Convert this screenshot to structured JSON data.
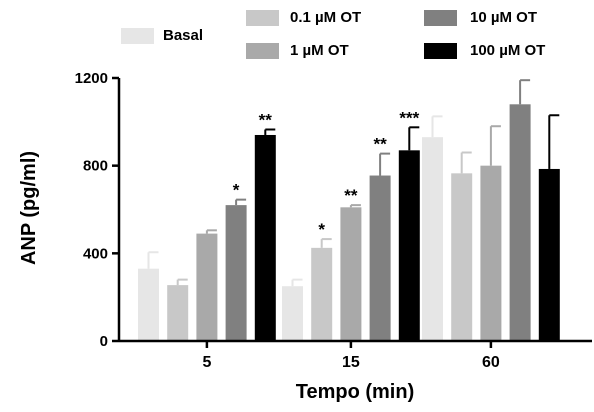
{
  "chart_data": {
    "type": "bar",
    "xlabel": "Tempo (min)",
    "ylabel": "ANP (pg/ml)",
    "ylim": [
      0,
      1200
    ],
    "yticks": [
      0,
      400,
      800,
      1200
    ],
    "yticks_labels": [
      "0",
      "400",
      "800",
      "1200"
    ],
    "grid": false,
    "legend_position": "top",
    "categories": [
      "5",
      "15",
      "60"
    ],
    "series": [
      {
        "name": "Basal",
        "color": "#e6e6e6",
        "values": [
          330,
          250,
          930
        ],
        "errors": [
          75,
          30,
          95
        ]
      },
      {
        "name": "0.1 µM OT",
        "color": "#c8c8c8",
        "values": [
          255,
          425,
          765
        ],
        "errors": [
          25,
          40,
          95
        ]
      },
      {
        "name": "1 µM OT",
        "color": "#a9a9a9",
        "values": [
          490,
          610,
          800
        ],
        "errors": [
          15,
          10,
          180
        ]
      },
      {
        "name": "10 µM OT",
        "color": "#808080",
        "values": [
          620,
          755,
          1080
        ],
        "errors": [
          25,
          100,
          110
        ]
      },
      {
        "name": "100 µM OT",
        "color": "#000000",
        "values": [
          940,
          870,
          785
        ],
        "errors": [
          25,
          105,
          245
        ]
      }
    ],
    "significance": [
      {
        "series": "10 µM OT",
        "category": "5",
        "label": "*"
      },
      {
        "series": "100 µM OT",
        "category": "5",
        "label": "**"
      },
      {
        "series": "0.1 µM OT",
        "category": "15",
        "label": "*"
      },
      {
        "series": "1 µM OT",
        "category": "15",
        "label": "**"
      },
      {
        "series": "10 µM OT",
        "category": "15",
        "label": "**"
      },
      {
        "series": "100 µM OT",
        "category": "15",
        "label": "***"
      }
    ]
  }
}
